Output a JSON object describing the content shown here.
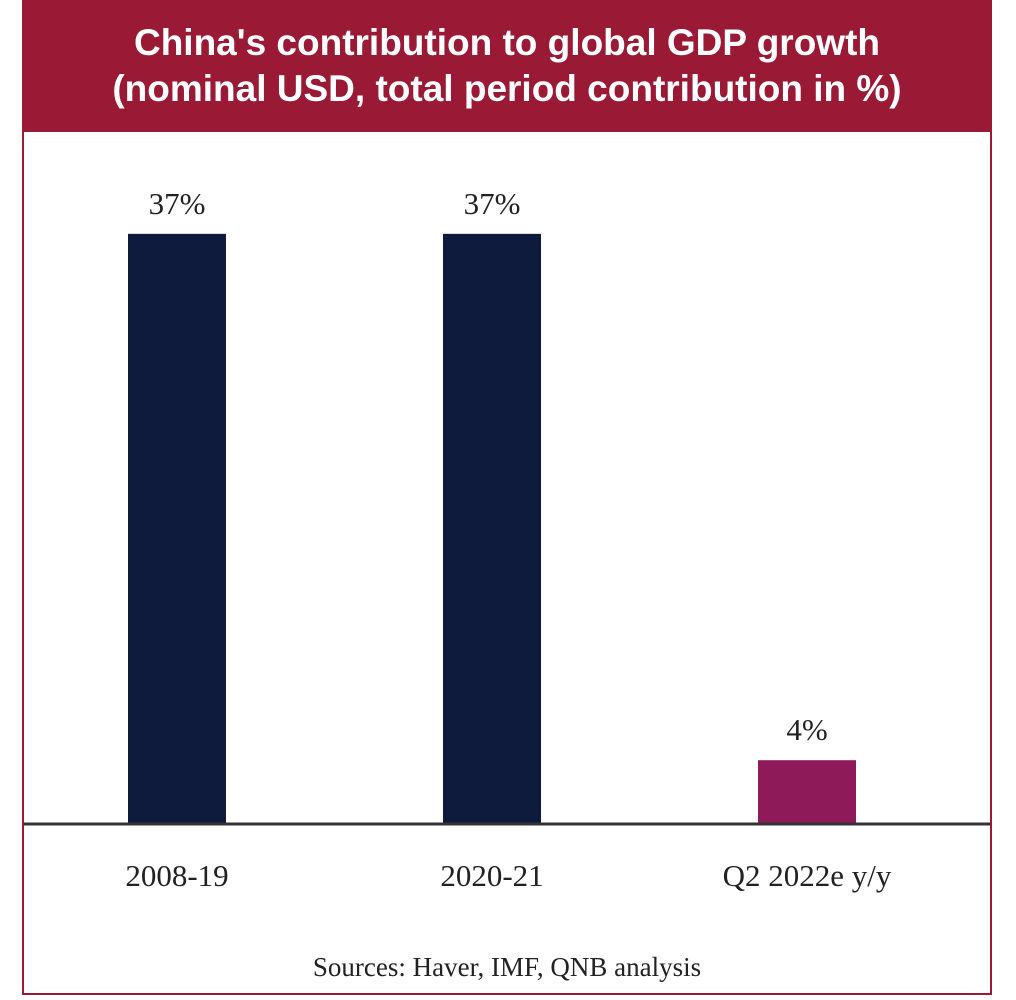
{
  "chart_data": {
    "type": "bar",
    "title": "China's contribution to global GDP growth",
    "subtitle": "(nominal USD, total period contribution in %)",
    "categories": [
      "2008-19",
      "2020-21",
      "Q2 2022e y/y"
    ],
    "values": [
      37,
      37,
      4
    ],
    "data_labels": [
      "37%",
      "37%",
      "4%"
    ],
    "colors": [
      "#0e1b3c",
      "#0e1b3c",
      "#8e1a5a"
    ],
    "ylim": [
      0,
      40
    ],
    "grid": false,
    "xlabel": "",
    "ylabel": "",
    "source": "Sources: Haver, IMF, QNB analysis"
  },
  "theme": {
    "header_bg": "#9a1a35",
    "header_text": "#ffffff",
    "axis_color": "#333333"
  }
}
